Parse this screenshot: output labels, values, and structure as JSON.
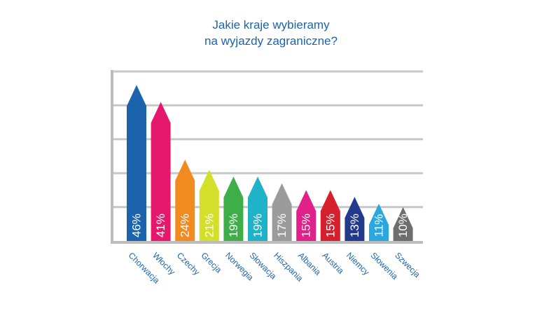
{
  "chart_data": {
    "type": "bar",
    "title": [
      "Jakie kraje wybieramy",
      "na wyjazdy zagraniczne?"
    ],
    "xlabel": "",
    "ylabel": "",
    "categories": [
      "Chorwacja",
      "Włochy",
      "Czechy",
      "Grecja",
      "Norwegia",
      "Słowacja",
      "Hiszpania",
      "Albania",
      "Austria",
      "Niemcy",
      "Słowenia",
      "Szwecja"
    ],
    "values": [
      46,
      41,
      24,
      21,
      19,
      19,
      17,
      15,
      15,
      13,
      11,
      10
    ],
    "value_labels": [
      "46%",
      "41%",
      "24%",
      "21%",
      "19%",
      "19%",
      "17%",
      "15%",
      "15%",
      "13%",
      "11%",
      "10%"
    ],
    "colors": [
      "#1b63ad",
      "#e6186e",
      "#f18a1f",
      "#d4df29",
      "#3eae49",
      "#1fb3c9",
      "#9b9b9b",
      "#e0218a",
      "#d71f2d",
      "#233a8c",
      "#2aa7df",
      "#6e6e6e"
    ],
    "ylim": [
      0,
      50
    ],
    "grid": true,
    "legend": "none"
  }
}
